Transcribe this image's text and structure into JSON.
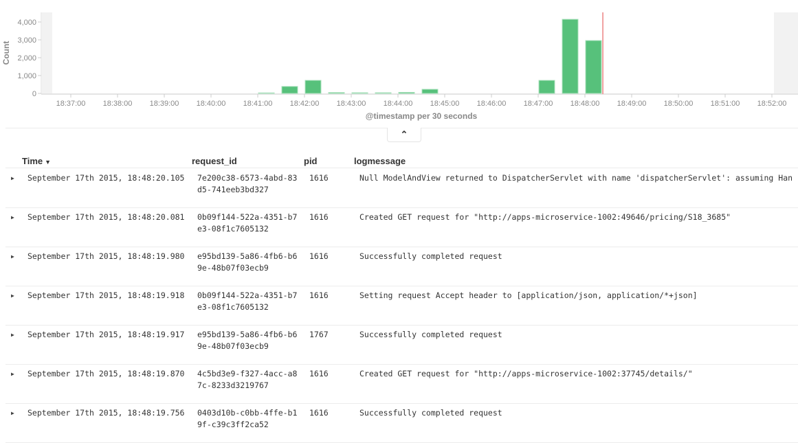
{
  "chart_data": {
    "type": "bar",
    "ylabel": "Count",
    "xlabel": "@timestamp per 30 seconds",
    "ylim": [
      0,
      4500
    ],
    "yticks": [
      "0",
      "1,000",
      "2,000",
      "3,000",
      "4,000"
    ],
    "ytick_values": [
      0,
      1000,
      2000,
      3000,
      4000
    ],
    "xticks": [
      "18:37:00",
      "18:38:00",
      "18:39:00",
      "18:40:00",
      "18:41:00",
      "18:42:00",
      "18:43:00",
      "18:44:00",
      "18:45:00",
      "18:46:00",
      "18:47:00",
      "18:48:00",
      "18:49:00",
      "18:50:00",
      "18:51:00",
      "18:52:00"
    ],
    "x": [
      "18:41:00",
      "18:41:30",
      "18:42:00",
      "18:42:30",
      "18:43:00",
      "18:43:30",
      "18:44:00",
      "18:44:30",
      "18:47:00",
      "18:47:30",
      "18:48:00"
    ],
    "values": [
      30,
      390,
      730,
      50,
      40,
      40,
      60,
      230,
      730,
      4150,
      2960
    ],
    "bar_color": "#57c17b",
    "now_marker": "18:48:23",
    "now_marker_color": "#f0a0a0",
    "grid": false
  },
  "collapse_icon": "chevron-up-icon",
  "table": {
    "columns": [
      "Time",
      "request_id",
      "pid",
      "logmessage"
    ],
    "sort_icon": "caret-down-icon",
    "rows": [
      {
        "time": "September 17th 2015, 18:48:20.105",
        "request_id": "7e200c38-6573-4abd-83d5-741eeb3bd327",
        "pid": "1616",
        "logmessage": "Null ModelAndView returned to DispatcherServlet with name 'dispatcherServlet': assuming Han"
      },
      {
        "time": "September 17th 2015, 18:48:20.081",
        "request_id": "0b09f144-522a-4351-b7e3-08f1c7605132",
        "pid": "1616",
        "logmessage": "Created GET request for \"http://apps-microservice-1002:49646/pricing/S18_3685\""
      },
      {
        "time": "September 17th 2015, 18:48:19.980",
        "request_id": "e95bd139-5a86-4fb6-b69e-48b07f03ecb9",
        "pid": "1616",
        "logmessage": "Successfully completed request"
      },
      {
        "time": "September 17th 2015, 18:48:19.918",
        "request_id": "0b09f144-522a-4351-b7e3-08f1c7605132",
        "pid": "1616",
        "logmessage": "Setting request Accept header to [application/json, application/*+json]"
      },
      {
        "time": "September 17th 2015, 18:48:19.917",
        "request_id": "e95bd139-5a86-4fb6-b69e-48b07f03ecb9",
        "pid": "1767",
        "logmessage": "Successfully completed request"
      },
      {
        "time": "September 17th 2015, 18:48:19.870",
        "request_id": "4c5bd3e9-f327-4acc-a87c-8233d3219767",
        "pid": "1616",
        "logmessage": "Created GET request for \"http://apps-microservice-1002:37745/details/\""
      },
      {
        "time": "September 17th 2015, 18:48:19.756",
        "request_id": "0403d10b-c0bb-4ffe-b19f-c39c3ff2ca52",
        "pid": "1616",
        "logmessage": "Successfully completed request"
      }
    ]
  }
}
